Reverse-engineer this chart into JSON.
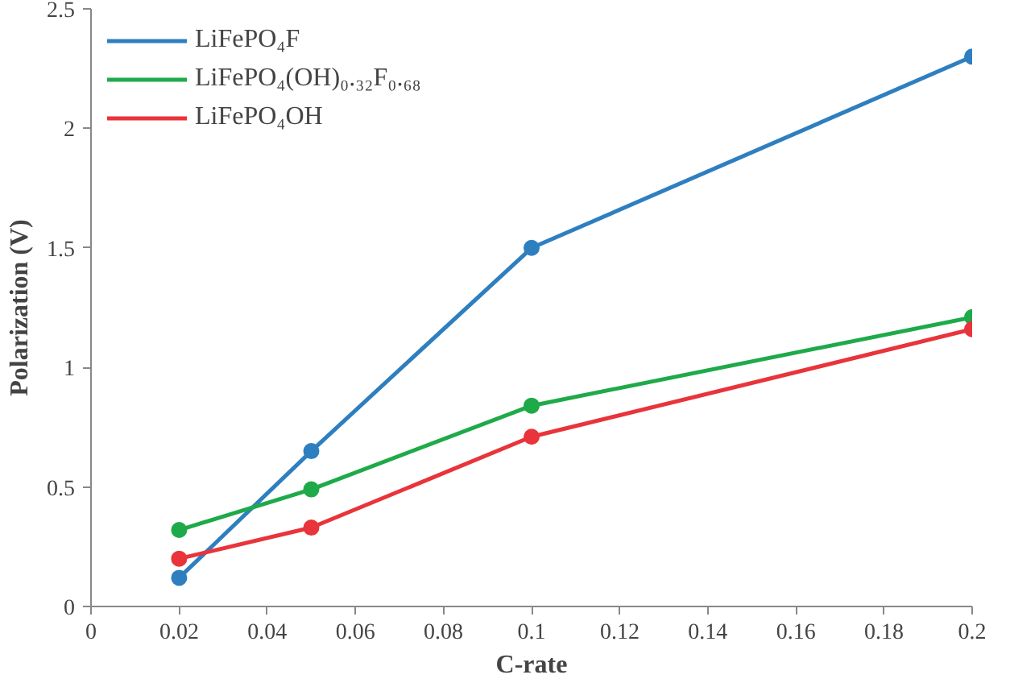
{
  "chart_data": {
    "type": "line",
    "xlabel": "C-rate",
    "ylabel": "Polarization (V)",
    "x": [
      0.02,
      0.05,
      0.1,
      0.2
    ],
    "series": [
      {
        "name": "LiFePO₄F",
        "color": "#2e7fc0",
        "values": [
          0.12,
          0.65,
          1.5,
          2.3
        ]
      },
      {
        "name": "LiFePO₄(OH)₀.₃₂F₀.₆₈",
        "color": "#1faa4a",
        "values": [
          0.32,
          0.49,
          0.84,
          1.21
        ]
      },
      {
        "name": "LiFePO₄OH",
        "color": "#e8343a",
        "values": [
          0.2,
          0.33,
          0.71,
          1.16
        ]
      }
    ],
    "xlim": [
      0,
      0.2
    ],
    "xticks": [
      0,
      0.02,
      0.04,
      0.06,
      0.08,
      0.1,
      0.12,
      0.14,
      0.16,
      0.18,
      0.2
    ],
    "ylim": [
      0,
      2.5
    ],
    "yticks": [
      0,
      0.5,
      1,
      1.5,
      2,
      2.5
    ],
    "grid": false,
    "legend": "top left",
    "marker": "circle",
    "line_style": "solid"
  }
}
